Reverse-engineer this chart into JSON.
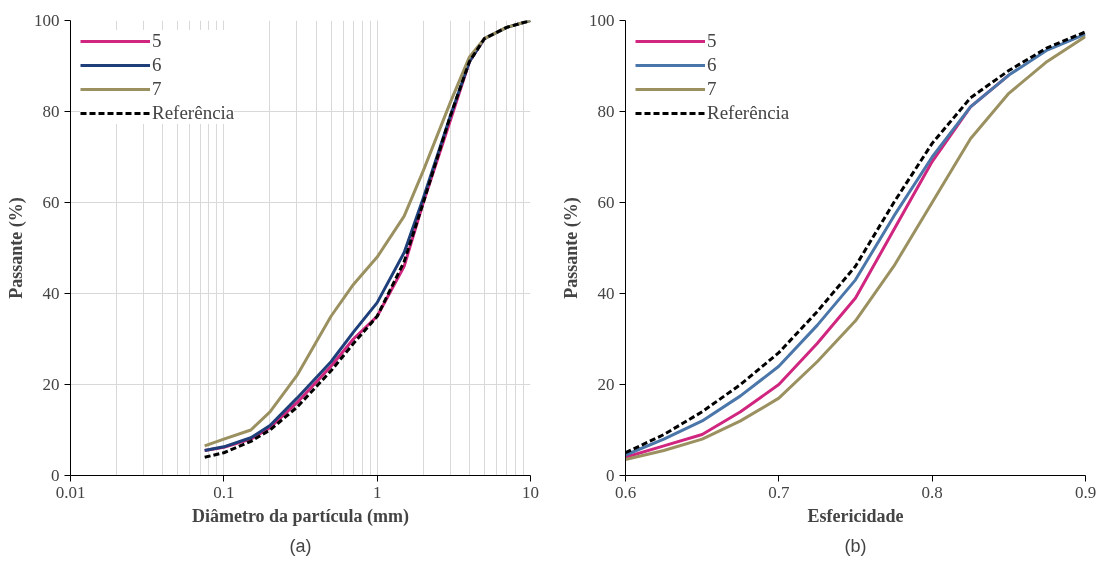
{
  "chart_data": [
    {
      "type": "line",
      "xlabel": "Diâmetro da partícula (mm)",
      "ylabel": "Passante (%)",
      "log": "x",
      "xlim": [
        0.01,
        10
      ],
      "xticks": [
        0.01,
        0.1,
        1,
        10
      ],
      "ylim": [
        0,
        100
      ],
      "yticks": [
        0,
        20,
        40,
        60,
        80,
        100
      ],
      "grid": true,
      "legend": "top left",
      "annotations": [
        "(a)"
      ],
      "series": [
        {
          "name": "5",
          "color": "#d0267f",
          "x": [
            0.075,
            0.1,
            0.15,
            0.2,
            0.3,
            0.5,
            0.7,
            1,
            1.5,
            2,
            3,
            4,
            5
          ],
          "values": [
            5.5,
            6.2,
            8,
            10.5,
            16,
            24,
            30,
            35,
            46,
            60,
            78,
            91,
            96
          ]
        },
        {
          "name": "6",
          "color": "#1f3f7a",
          "x": [
            0.075,
            0.1,
            0.15,
            0.2,
            0.3,
            0.5,
            0.7,
            1,
            1.5,
            2,
            3,
            4,
            5,
            7,
            10
          ],
          "values": [
            5.5,
            6.3,
            8.3,
            11,
            17,
            25,
            31.5,
            38,
            49,
            61,
            79,
            91,
            96,
            98.5,
            100
          ]
        },
        {
          "name": "7",
          "color": "#9a9060",
          "x": [
            0.075,
            0.1,
            0.15,
            0.2,
            0.3,
            0.5,
            0.7,
            1,
            1.5,
            2,
            3,
            4,
            5,
            7,
            10
          ],
          "values": [
            6.5,
            8,
            10,
            14,
            22,
            35,
            42,
            48,
            57,
            67,
            82,
            92,
            96,
            98.5,
            100
          ]
        },
        {
          "name": "Referência",
          "color": "#000000",
          "line_style": "dashed",
          "x": [
            0.075,
            0.1,
            0.15,
            0.2,
            0.3,
            0.5,
            0.7,
            1,
            1.5,
            2,
            3,
            4,
            5,
            7,
            10
          ],
          "values": [
            4,
            5,
            7.5,
            10,
            15,
            23,
            29,
            35,
            47,
            60,
            79,
            91,
            96,
            98.5,
            100
          ]
        }
      ]
    },
    {
      "type": "line",
      "xlabel": "Esfericidade",
      "ylabel": "Passante (%)",
      "xlim": [
        0.6,
        0.9
      ],
      "xticks": [
        0.6,
        0.7,
        0.8,
        0.9
      ],
      "ylim": [
        0,
        100
      ],
      "yticks": [
        0,
        20,
        40,
        60,
        80,
        100
      ],
      "grid": false,
      "legend": "top left",
      "annotations": [
        "(b)"
      ],
      "series": [
        {
          "name": "5",
          "color": "#d0267f",
          "x": [
            0.6,
            0.625,
            0.65,
            0.675,
            0.7,
            0.725,
            0.75,
            0.775,
            0.8,
            0.825,
            0.85
          ],
          "values": [
            4,
            6.5,
            9,
            14,
            20,
            29,
            39,
            54,
            69,
            81,
            88
          ]
        },
        {
          "name": "6",
          "color": "#4a76aa",
          "x": [
            0.6,
            0.625,
            0.65,
            0.675,
            0.7,
            0.725,
            0.75,
            0.775,
            0.8,
            0.825,
            0.85,
            0.875,
            0.9
          ],
          "values": [
            4.5,
            8,
            12,
            17.5,
            24,
            33,
            43,
            57,
            70,
            81,
            88,
            93.5,
            97
          ]
        },
        {
          "name": "7",
          "color": "#9a9060",
          "x": [
            0.6,
            0.625,
            0.65,
            0.675,
            0.7,
            0.725,
            0.75,
            0.775,
            0.8,
            0.825,
            0.85,
            0.875,
            0.9
          ],
          "values": [
            3.5,
            5.5,
            8,
            12,
            17,
            25,
            34,
            46,
            60,
            74,
            84,
            91,
            96.5
          ]
        },
        {
          "name": "Referência",
          "color": "#000000",
          "line_style": "dashed",
          "x": [
            0.6,
            0.625,
            0.65,
            0.675,
            0.7,
            0.725,
            0.75,
            0.775,
            0.8,
            0.825,
            0.85,
            0.875,
            0.9
          ],
          "values": [
            5,
            9,
            14,
            20,
            27,
            36,
            46,
            60,
            73,
            83,
            89,
            94,
            97.5
          ]
        }
      ]
    }
  ]
}
